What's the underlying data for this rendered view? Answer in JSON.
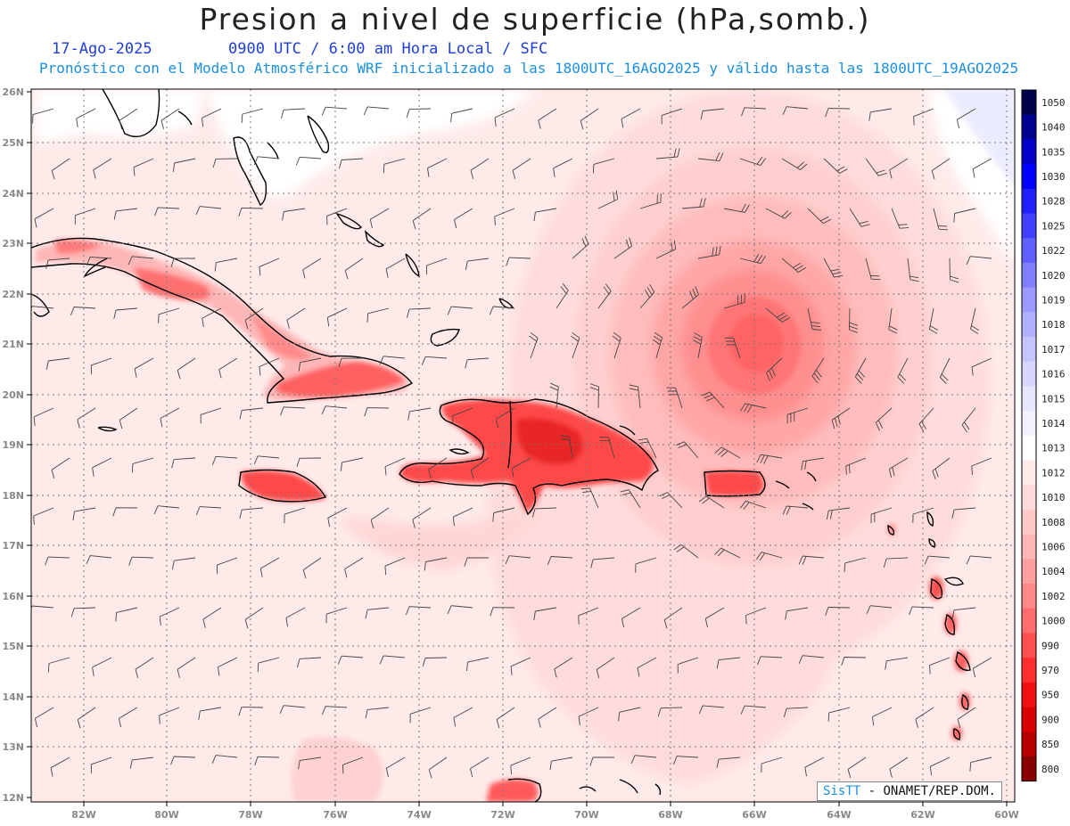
{
  "title": "Presion a nivel de superficie (hPa,somb.)",
  "date": "17-Ago-2025",
  "time_info": "0900 UTC / 6:00 am Hora Local / SFC",
  "model_info": "Pronóstico con el Modelo Atmosférico WRF inicializado a las 1800UTC_16AGO2025 y válido hasta las  1800UTC_19AGO2025",
  "lat_labels": [
    "26N",
    "25N",
    "24N",
    "23N",
    "22N",
    "21N",
    "20N",
    "19N",
    "18N",
    "17N",
    "16N",
    "15N",
    "14N",
    "13N",
    "12N"
  ],
  "lon_labels": [
    "82W",
    "80W",
    "78W",
    "76W",
    "74W",
    "72W",
    "70W",
    "68W",
    "66W",
    "64W",
    "62W",
    "60W"
  ],
  "colorbar": {
    "levels": [
      "1050",
      "1040",
      "1035",
      "1030",
      "1028",
      "1025",
      "1022",
      "1020",
      "1019",
      "1018",
      "1017",
      "1016",
      "1015",
      "1014",
      "1013",
      "1012",
      "1010",
      "1008",
      "1006",
      "1004",
      "1002",
      "1000",
      "990",
      "970",
      "950",
      "900",
      "850",
      "800"
    ],
    "colors": [
      "#00004a",
      "#000090",
      "#0000c8",
      "#0000ff",
      "#2020ff",
      "#4040ff",
      "#6060ff",
      "#8080ff",
      "#9a9aff",
      "#b0b0ff",
      "#c4c4ff",
      "#d6d6ff",
      "#e6e6ff",
      "#f2f2ff",
      "#ffffff",
      "#ffeaea",
      "#ffdada",
      "#ffc8c8",
      "#ffb6b6",
      "#ffa0a0",
      "#ff8888",
      "#ff6e6e",
      "#ff5050",
      "#ff2e2e",
      "#f01010",
      "#d80000",
      "#b80000",
      "#880000"
    ]
  },
  "credit": {
    "brand": "SisTT",
    "org": "- ONAMET/REP.DOM."
  }
}
